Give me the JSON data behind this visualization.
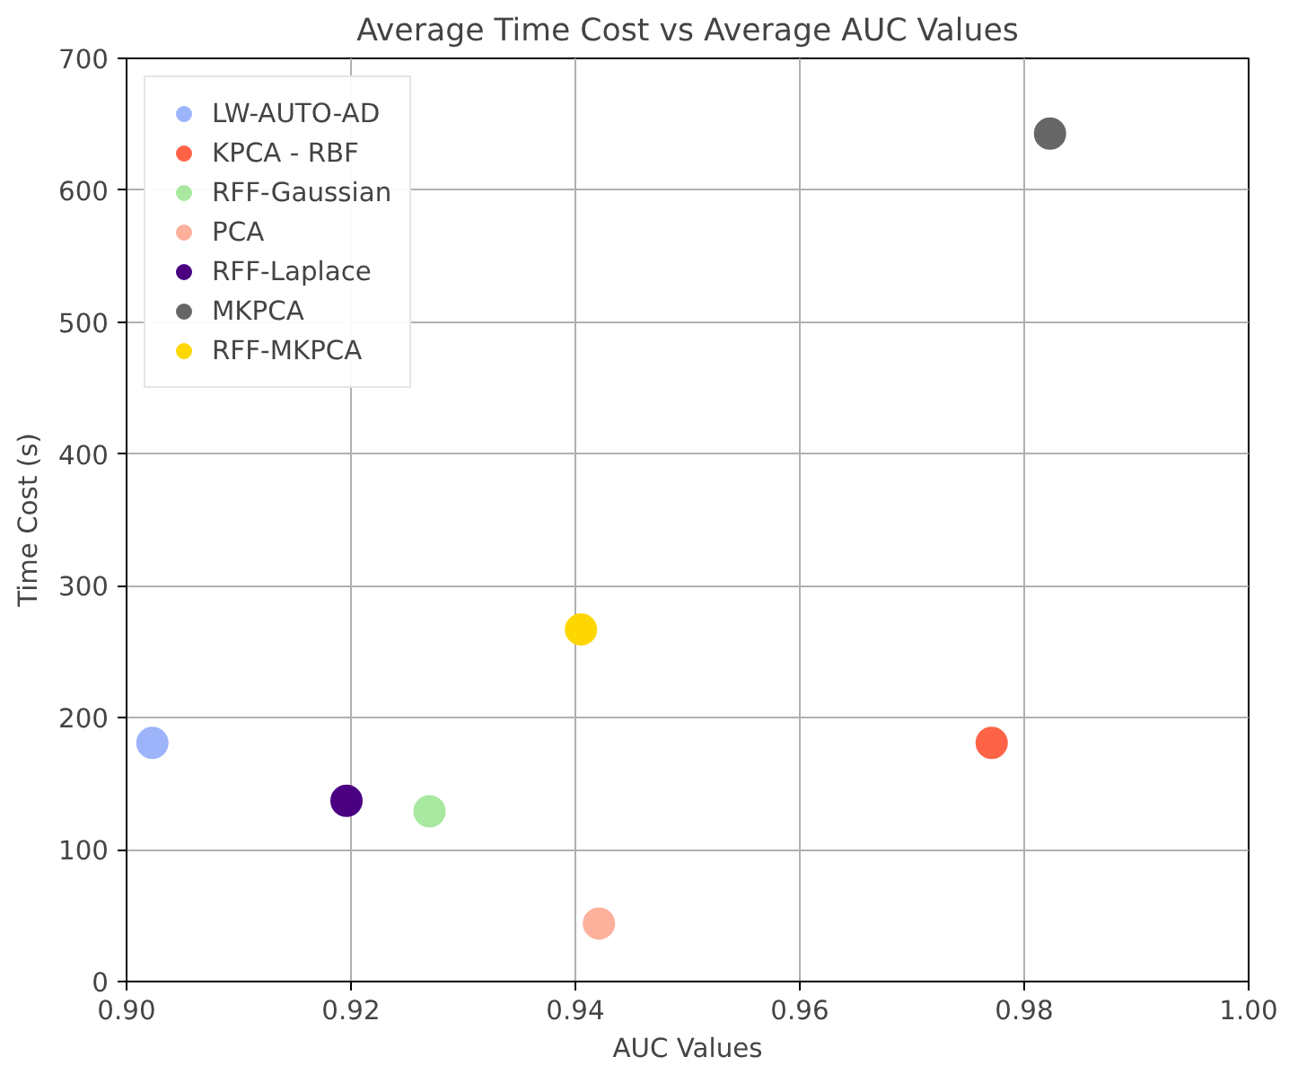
{
  "chart_data": {
    "type": "scatter",
    "title": "Average Time Cost vs Average AUC Values",
    "xlabel": "AUC Values",
    "ylabel": "Time Cost (s)",
    "xlim": [
      0.9,
      1.0
    ],
    "xticks": [
      {
        "value": 0.9,
        "label": "0.90"
      },
      {
        "value": 0.92,
        "label": "0.92"
      },
      {
        "value": 0.94,
        "label": "0.94"
      },
      {
        "value": 0.96,
        "label": "0.96"
      },
      {
        "value": 0.98,
        "label": "0.98"
      },
      {
        "value": 1.0,
        "label": "1.00"
      }
    ],
    "ylim": [
      0,
      700
    ],
    "yticks": [
      0,
      100,
      200,
      300,
      400,
      500,
      600,
      700
    ],
    "grid": true,
    "legend": "top left",
    "marker": "circle",
    "series": [
      {
        "name": "LW-AUTO-AD",
        "color": "#9db4fb",
        "x": [
          0.9023
        ],
        "values": [
          181
        ]
      },
      {
        "name": "KPCA - RBF",
        "color": "#fe6347",
        "x": [
          0.9771
        ],
        "values": [
          181
        ]
      },
      {
        "name": "RFF-Gaussian",
        "color": "#a8e8a0",
        "x": [
          0.927
        ],
        "values": [
          129
        ]
      },
      {
        "name": "PCA",
        "color": "#fdb09b",
        "x": [
          0.9421
        ],
        "values": [
          44
        ]
      },
      {
        "name": "RFF-Laplace",
        "color": "#4b0082",
        "x": [
          0.9196
        ],
        "values": [
          137
        ]
      },
      {
        "name": "MKPCA",
        "color": "#666666",
        "x": [
          0.9823
        ],
        "values": [
          643
        ]
      },
      {
        "name": "RFF-MKPCA",
        "color": "#ffd700",
        "x": [
          0.9405
        ],
        "values": [
          267
        ]
      }
    ]
  }
}
